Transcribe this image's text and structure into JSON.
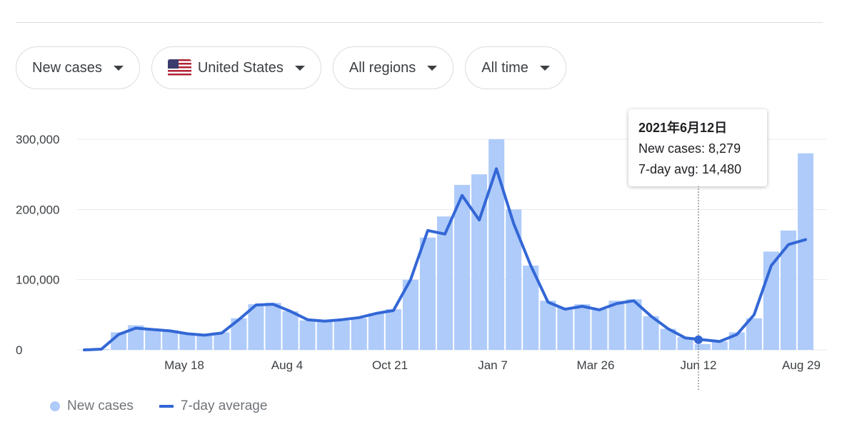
{
  "filters": {
    "metric": "New cases",
    "country": "United States",
    "region": "All regions",
    "range": "All time"
  },
  "legend": {
    "bars_label": "New cases",
    "line_label": "7-day average"
  },
  "tooltip": {
    "date": "2021年6月12日",
    "new_cases": "New cases: 8,279",
    "avg": "7-day avg: 14,480"
  },
  "colors": {
    "bar": "#aecbfa",
    "line": "#3367d6",
    "grid": "#e8eaed"
  },
  "chart_data": {
    "type": "bar",
    "title": "",
    "xlabel": "",
    "ylabel": "",
    "ylim": [
      0,
      300000
    ],
    "yticks": [
      "0",
      "100,000",
      "200,000",
      "300,000"
    ],
    "xticks": [
      "May 18",
      "Aug 4",
      "Oct 21",
      "Jan 7",
      "Mar 26",
      "Jun 12",
      "Aug 29"
    ],
    "grid": true,
    "legend_position": "bottom-left",
    "highlight": {
      "label": "Jun 12",
      "new_cases": 8279,
      "avg": 14480
    },
    "series": [
      {
        "name": "New cases",
        "kind": "bar",
        "x": [
          "Feb 22",
          "Mar 7",
          "Mar 21",
          "Apr 4",
          "Apr 18",
          "May 2",
          "May 18",
          "Jun 1",
          "Jun 15",
          "Jun 29",
          "Jul 13",
          "Jul 27",
          "Aug 4",
          "Aug 18",
          "Sep 1",
          "Sep 15",
          "Sep 29",
          "Oct 13",
          "Oct 21",
          "Nov 4",
          "Nov 18",
          "Dec 2",
          "Dec 16",
          "Dec 30",
          "Jan 7",
          "Jan 21",
          "Feb 4",
          "Feb 18",
          "Mar 4",
          "Mar 18",
          "Mar 26",
          "Apr 9",
          "Apr 23",
          "May 7",
          "May 21",
          "Jun 4",
          "Jun 12",
          "Jun 26",
          "Jul 10",
          "Jul 24",
          "Aug 7",
          "Aug 21",
          "Aug 29"
        ],
        "values": [
          0,
          1000,
          25000,
          35000,
          30000,
          28000,
          24000,
          22000,
          25000,
          45000,
          65000,
          67000,
          55000,
          42000,
          40000,
          42000,
          45000,
          52000,
          58000,
          100000,
          160000,
          190000,
          235000,
          250000,
          300000,
          200000,
          120000,
          70000,
          60000,
          65000,
          58000,
          70000,
          72000,
          48000,
          30000,
          18000,
          8279,
          12000,
          25000,
          45000,
          140000,
          170000,
          280000
        ]
      },
      {
        "name": "7-day average",
        "kind": "line",
        "x": [
          "Feb 22",
          "Mar 7",
          "Mar 21",
          "Apr 4",
          "Apr 18",
          "May 2",
          "May 18",
          "Jun 1",
          "Jun 15",
          "Jun 29",
          "Jul 13",
          "Jul 27",
          "Aug 4",
          "Aug 18",
          "Sep 1",
          "Sep 15",
          "Sep 29",
          "Oct 13",
          "Oct 21",
          "Nov 4",
          "Nov 18",
          "Dec 2",
          "Dec 16",
          "Dec 30",
          "Jan 7",
          "Jan 21",
          "Feb 4",
          "Feb 18",
          "Mar 4",
          "Mar 18",
          "Mar 26",
          "Apr 9",
          "Apr 23",
          "May 7",
          "May 21",
          "Jun 4",
          "Jun 12",
          "Jun 26",
          "Jul 10",
          "Jul 24",
          "Aug 7",
          "Aug 21",
          "Aug 29"
        ],
        "values": [
          0,
          1000,
          22000,
          31000,
          29000,
          27000,
          23000,
          21000,
          24000,
          43000,
          64000,
          65000,
          55000,
          43000,
          41000,
          43000,
          46000,
          52000,
          56000,
          100000,
          170000,
          165000,
          220000,
          185000,
          258000,
          180000,
          120000,
          68000,
          58000,
          62000,
          57000,
          66000,
          70000,
          48000,
          30000,
          17000,
          14480,
          12000,
          22000,
          50000,
          120000,
          150000,
          157000
        ]
      }
    ]
  }
}
